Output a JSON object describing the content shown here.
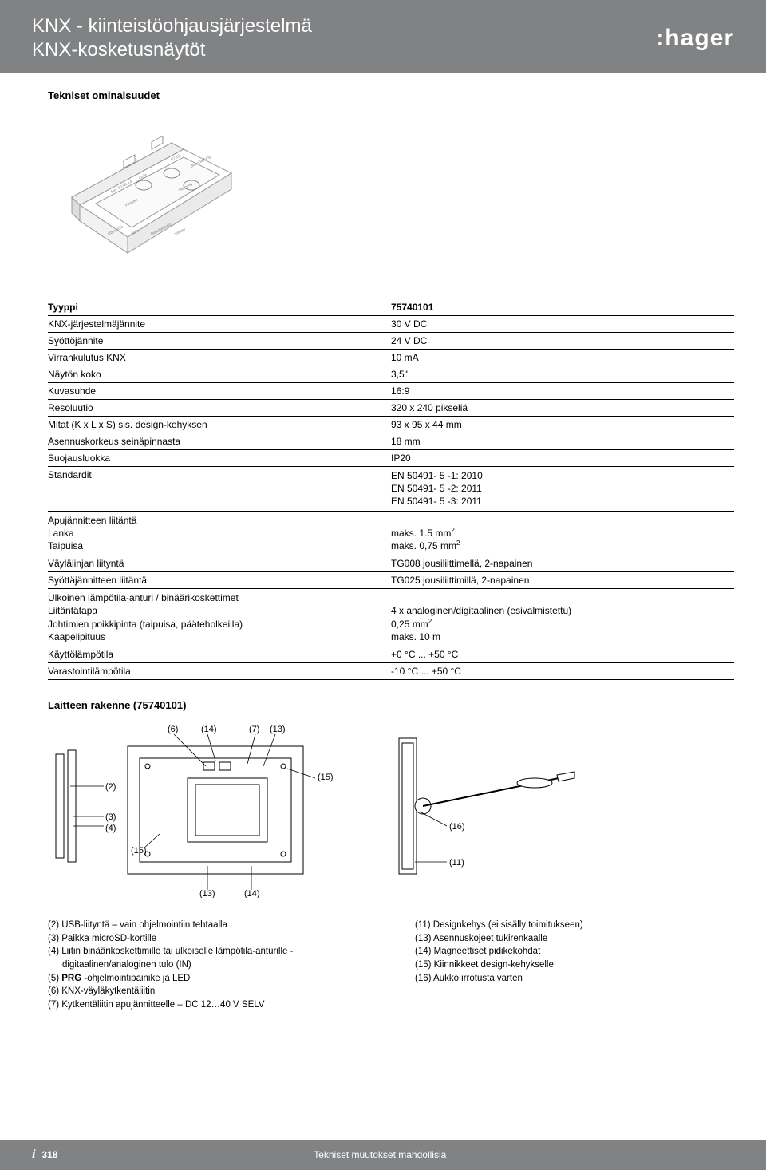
{
  "header": {
    "title1": "KNX - kiinteistöohjausjärjestelmä",
    "title2": "KNX-kosketusnäytöt",
    "brand": ":hager"
  },
  "section_title": "Tekniset ominaisuudet",
  "spec_table": {
    "head_left": "Tyyppi",
    "head_right": "75740101",
    "rows": [
      {
        "l": "KNX-järjestelmäjännite",
        "r": "30 V DC"
      },
      {
        "l": "Syöttöjännite",
        "r": "24 V DC"
      },
      {
        "l": "Virrankulutus KNX",
        "r": "10 mA"
      },
      {
        "l": "Näytön koko",
        "r": "3,5\""
      },
      {
        "l": "Kuvasuhde",
        "r": "16:9"
      },
      {
        "l": "Resoluutio",
        "r": "320 x 240 pikseliä"
      },
      {
        "l": "Mitat (K x L x S) sis. design-kehyksen",
        "r": "93 x 95 x 44 mm"
      },
      {
        "l": "Asennuskorkeus seinäpinnasta",
        "r": "18 mm"
      },
      {
        "l": "Suojausluokka",
        "r": "IP20"
      },
      {
        "l": "Standardit",
        "r": "EN 50491- 5 -1: 2010\nEN 50491- 5 -2: 2011\nEN 50491- 5 -3: 2011"
      },
      {
        "l": "Apujännitteen liitäntä\nLanka\nTaipuisa",
        "r": "\nmaks. 1.5 mm²\nmaks. 0,75 mm²"
      },
      {
        "l": "Väylälinjan liityntä",
        "r": "TG008 jousiliittimellä, 2-napainen"
      },
      {
        "l": "Syöttäjännitteen liitäntä",
        "r": "TG025 jousiliittimillä, 2-napainen"
      },
      {
        "l": "Ulkoinen lämpötila-anturi / binäärikoskettimet\nLiitäntätapa\nJohtimien poikkipinta (taipuisa, pääteholkeilla)\nKaapelipituus",
        "r": "\n4 x analoginen/digitaalinen (esivalmistettu)\n0,25 mm²\nmaks. 10 m"
      },
      {
        "l": "Käyttölämpötila",
        "r": "+0 °C ... +50 °C"
      },
      {
        "l": "Varastointilämpötila",
        "r": "-10 °C ... +50 °C"
      }
    ]
  },
  "structure_title": "Laitteen rakenne (75740101)",
  "diagram_labels": {
    "d1": {
      "n6": "(6)",
      "n14": "(14)",
      "n7": "(7)",
      "n13": "(13)",
      "n2": "(2)",
      "n3": "(3)",
      "n4": "(4)",
      "n15": "(15)",
      "n15b": "(15)",
      "n13b": "(13)",
      "n14b": "(14)"
    },
    "d2": {
      "n16": "(16)",
      "n11": "(11)"
    }
  },
  "legend": {
    "left": [
      "(2) USB-liityntä – vain ohjelmointiin tehtaalla",
      "(3) Paikka microSD-kortille",
      "(4) Liitin binäärikoskettimille tai ulkoiselle lämpötila-anturille -",
      "digitaalinen/analoginen tulo (IN)",
      "(5) PRG -ohjelmointipainike ja LED",
      "(6) KNX-väyläkytkentäliitin",
      "(7) Kytkentäliitin apujännitteelle – DC 12…40 V SELV"
    ],
    "right": [
      "(11) Designkehys (ei sisälly toimitukseen)",
      "(13) Asennuskojeet tukirenkaalle",
      "(14) Magneettiset pidikekohdat",
      "(15) Kiinnikkeet design-kehykselle",
      "(16) Aukko irrotusta varten"
    ]
  },
  "footer": {
    "page": "318",
    "note": "Tekniset muutokset mahdollisia"
  },
  "colors": {
    "header_bg": "#808284",
    "text": "#000000",
    "header_text": "#ffffff"
  }
}
